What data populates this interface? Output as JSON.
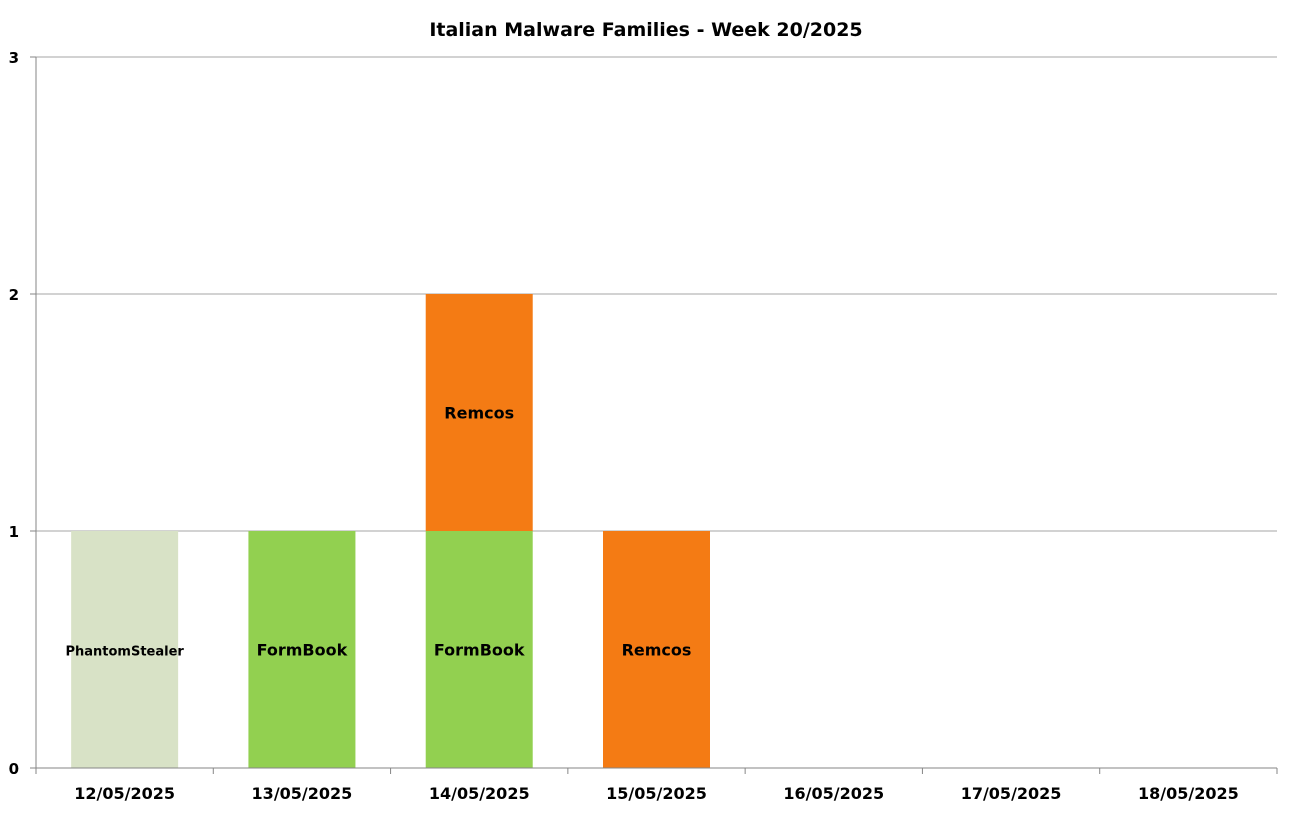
{
  "chart_data": {
    "type": "bar",
    "stacked": true,
    "title": "Italian Malware Families - Week 20/2025",
    "xlabel": "",
    "ylabel": "",
    "ylim": [
      0,
      3
    ],
    "y_ticks": [
      "0",
      "1",
      "2",
      "3"
    ],
    "grid": "horizontal",
    "legend": "none",
    "categories": [
      "12/05/2025",
      "13/05/2025",
      "14/05/2025",
      "15/05/2025",
      "16/05/2025",
      "17/05/2025",
      "18/05/2025"
    ],
    "series": [
      {
        "name": "PhantomStealer",
        "color": "#d8e2c6",
        "values": [
          1,
          0,
          0,
          0,
          0,
          0,
          0
        ]
      },
      {
        "name": "FormBook",
        "color": "#92d050",
        "values": [
          0,
          1,
          1,
          0,
          0,
          0,
          0
        ]
      },
      {
        "name": "Remcos",
        "color": "#f47b14",
        "values": [
          0,
          0,
          1,
          1,
          0,
          0,
          0
        ]
      }
    ]
  }
}
